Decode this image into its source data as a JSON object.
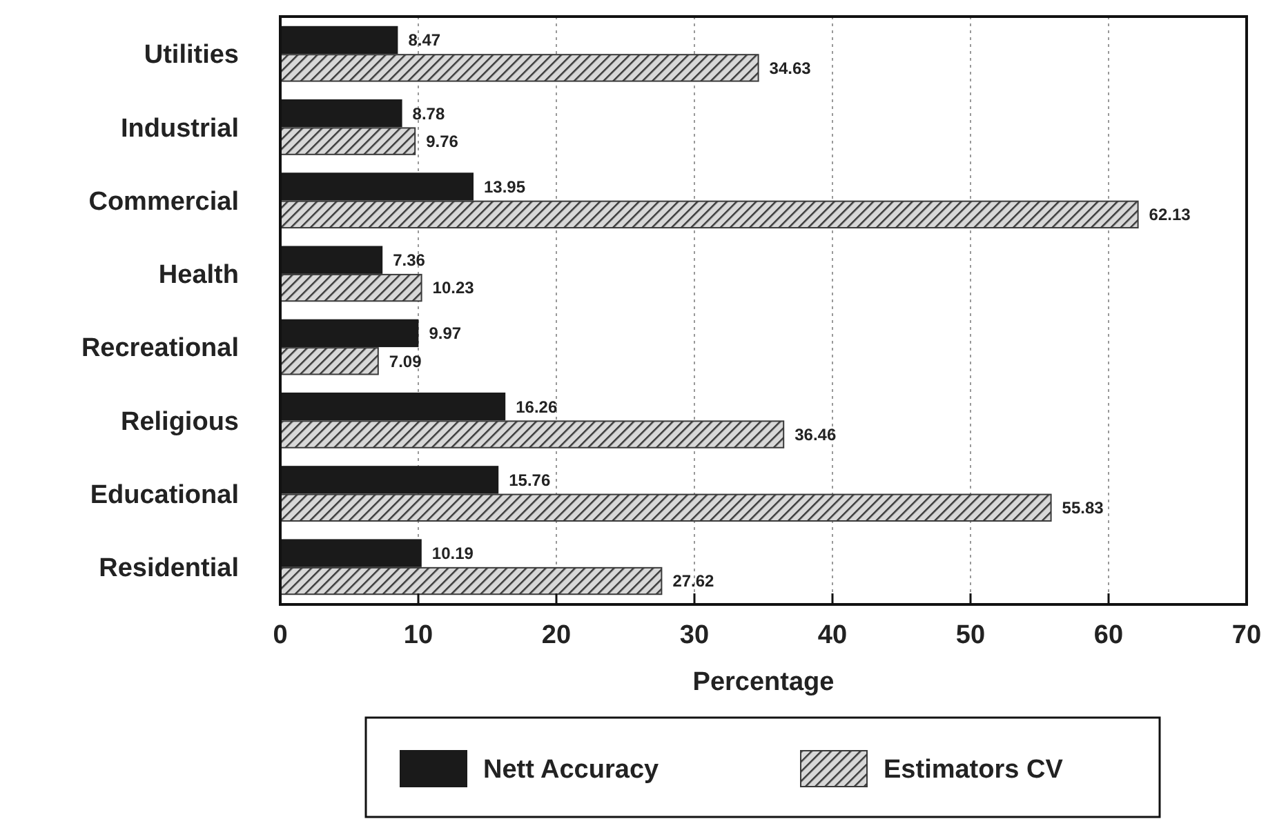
{
  "chart_data": {
    "type": "bar",
    "orientation": "horizontal",
    "xlabel": "Percentage",
    "categories": [
      "Utilities",
      "Industrial",
      "Commercial",
      "Health",
      "Recreational",
      "Religious",
      "Educational",
      "Residential"
    ],
    "series": [
      {
        "name": "Nett Accuracy",
        "color": "#1a1a1a",
        "values": [
          8.47,
          8.78,
          13.95,
          7.36,
          9.97,
          16.26,
          15.76,
          10.19
        ]
      },
      {
        "name": "Estimators CV",
        "color": "#3a3a3a",
        "values": [
          34.63,
          9.76,
          62.13,
          10.23,
          7.09,
          36.46,
          55.83,
          27.62
        ]
      }
    ],
    "xlim": [
      0,
      70
    ],
    "xticks": [
      0,
      10,
      20,
      30,
      40,
      50,
      60,
      70
    ],
    "grid": "x",
    "data_labels": true,
    "legend": "bottom"
  }
}
